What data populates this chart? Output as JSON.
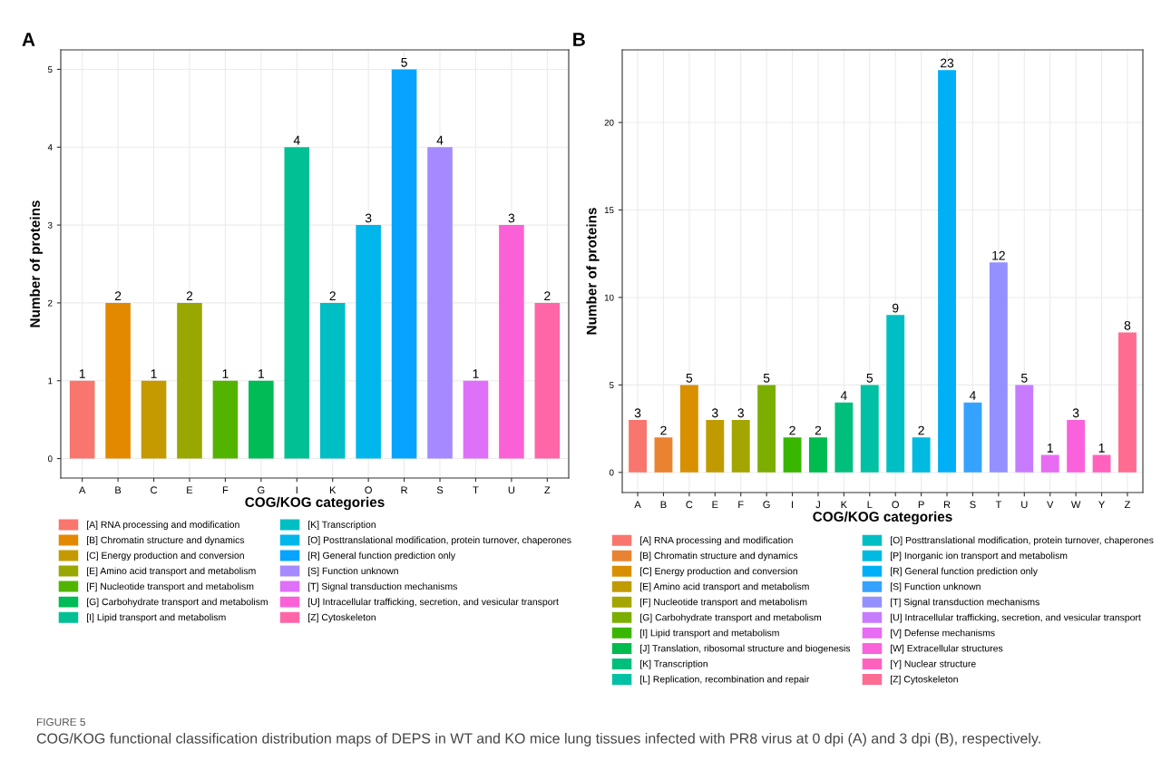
{
  "chart_data": [
    {
      "type": "bar",
      "title": "A",
      "xlabel": "COG/KOG categories",
      "ylabel": "Number of proteins",
      "categories": [
        "A",
        "B",
        "C",
        "E",
        "F",
        "G",
        "I",
        "K",
        "O",
        "R",
        "S",
        "T",
        "U",
        "Z"
      ],
      "series": [
        {
          "name": "[A] RNA processing and modification",
          "color": "#f8766d",
          "values": [
            1,
            null,
            null,
            null,
            null,
            null,
            null,
            null,
            null,
            null,
            null,
            null,
            null,
            null
          ]
        },
        {
          "name": "[B] Chromatin structure and dynamics",
          "color": "#e38900",
          "values": [
            null,
            2,
            null,
            null,
            null,
            null,
            null,
            null,
            null,
            null,
            null,
            null,
            null,
            null
          ]
        },
        {
          "name": "[C] Energy production and conversion",
          "color": "#c49a00",
          "values": [
            null,
            null,
            1,
            null,
            null,
            null,
            null,
            null,
            null,
            null,
            null,
            null,
            null,
            null
          ]
        },
        {
          "name": "[E] Amino acid transport and metabolism",
          "color": "#99a800",
          "values": [
            null,
            null,
            null,
            2,
            null,
            null,
            null,
            null,
            null,
            null,
            null,
            null,
            null,
            null
          ]
        },
        {
          "name": "[F] Nucleotide transport and metabolism",
          "color": "#53b400",
          "values": [
            null,
            null,
            null,
            null,
            1,
            null,
            null,
            null,
            null,
            null,
            null,
            null,
            null,
            null
          ]
        },
        {
          "name": "[G] Carbohydrate transport and metabolism",
          "color": "#00bc56",
          "values": [
            null,
            null,
            null,
            null,
            null,
            1,
            null,
            null,
            null,
            null,
            null,
            null,
            null,
            null
          ]
        },
        {
          "name": "[I] Lipid transport and metabolism",
          "color": "#00c094",
          "values": [
            null,
            null,
            null,
            null,
            null,
            null,
            4,
            null,
            null,
            null,
            null,
            null,
            null,
            null
          ]
        },
        {
          "name": "[K] Transcription",
          "color": "#00bfc4",
          "values": [
            null,
            null,
            null,
            null,
            null,
            null,
            null,
            2,
            null,
            null,
            null,
            null,
            null,
            null
          ]
        },
        {
          "name": "[O] Posttranslational modification, protein turnover, chaperones",
          "color": "#00b6eb",
          "values": [
            null,
            null,
            null,
            null,
            null,
            null,
            null,
            null,
            3,
            null,
            null,
            null,
            null,
            null
          ]
        },
        {
          "name": "[R] General function prediction only",
          "color": "#06a4ff",
          "values": [
            null,
            null,
            null,
            null,
            null,
            null,
            null,
            null,
            null,
            5,
            null,
            null,
            null,
            null
          ]
        },
        {
          "name": "[S] Function unknown",
          "color": "#a58aff",
          "values": [
            null,
            null,
            null,
            null,
            null,
            null,
            null,
            null,
            null,
            null,
            4,
            null,
            null,
            null
          ]
        },
        {
          "name": "[T] Signal transduction mechanisms",
          "color": "#df70f8",
          "values": [
            null,
            null,
            null,
            null,
            null,
            null,
            null,
            null,
            null,
            null,
            null,
            1,
            null,
            null
          ]
        },
        {
          "name": "[U] Intracellular trafficking, secretion, and vesicular transport",
          "color": "#fb61d7",
          "values": [
            null,
            null,
            null,
            null,
            null,
            null,
            null,
            null,
            null,
            null,
            null,
            null,
            3,
            null
          ]
        },
        {
          "name": "[Z] Cytoskeleton",
          "color": "#ff66a8",
          "values": [
            null,
            null,
            null,
            null,
            null,
            null,
            null,
            null,
            null,
            null,
            null,
            null,
            null,
            2
          ]
        }
      ],
      "ylim": [
        -0.25,
        5.25
      ],
      "yticks": [
        0,
        1,
        2,
        3,
        4,
        5
      ],
      "grid": true,
      "legend": "bottom",
      "data_labels": true
    },
    {
      "type": "bar",
      "title": "B",
      "xlabel": "COG/KOG categories",
      "ylabel": "Number of proteins",
      "categories": [
        "A",
        "B",
        "C",
        "E",
        "F",
        "G",
        "I",
        "J",
        "K",
        "L",
        "O",
        "P",
        "R",
        "S",
        "T",
        "U",
        "V",
        "W",
        "Y",
        "Z"
      ],
      "series": [
        {
          "name": "[A] RNA processing and modification",
          "color": "#f8766d",
          "values": [
            3,
            null,
            null,
            null,
            null,
            null,
            null,
            null,
            null,
            null,
            null,
            null,
            null,
            null,
            null,
            null,
            null,
            null,
            null,
            null
          ]
        },
        {
          "name": "[B] Chromatin structure and dynamics",
          "color": "#ea8331",
          "values": [
            null,
            2,
            null,
            null,
            null,
            null,
            null,
            null,
            null,
            null,
            null,
            null,
            null,
            null,
            null,
            null,
            null,
            null,
            null,
            null
          ]
        },
        {
          "name": "[C] Energy production and conversion",
          "color": "#d89000",
          "values": [
            null,
            null,
            5,
            null,
            null,
            null,
            null,
            null,
            null,
            null,
            null,
            null,
            null,
            null,
            null,
            null,
            null,
            null,
            null,
            null
          ]
        },
        {
          "name": "[E] Amino acid transport and metabolism",
          "color": "#c09b00",
          "values": [
            null,
            null,
            null,
            3,
            null,
            null,
            null,
            null,
            null,
            null,
            null,
            null,
            null,
            null,
            null,
            null,
            null,
            null,
            null,
            null
          ]
        },
        {
          "name": "[F] Nucleotide transport and metabolism",
          "color": "#a3a500",
          "values": [
            null,
            null,
            null,
            null,
            3,
            null,
            null,
            null,
            null,
            null,
            null,
            null,
            null,
            null,
            null,
            null,
            null,
            null,
            null,
            null
          ]
        },
        {
          "name": "[G] Carbohydrate transport and metabolism",
          "color": "#7cae00",
          "values": [
            null,
            null,
            null,
            null,
            null,
            5,
            null,
            null,
            null,
            null,
            null,
            null,
            null,
            null,
            null,
            null,
            null,
            null,
            null,
            null
          ]
        },
        {
          "name": "[I] Lipid transport and metabolism",
          "color": "#39b600",
          "values": [
            null,
            null,
            null,
            null,
            null,
            null,
            2,
            null,
            null,
            null,
            null,
            null,
            null,
            null,
            null,
            null,
            null,
            null,
            null,
            null
          ]
        },
        {
          "name": "[J] Translation, ribosomal structure and biogenesis",
          "color": "#00bb4e",
          "values": [
            null,
            null,
            null,
            null,
            null,
            null,
            null,
            2,
            null,
            null,
            null,
            null,
            null,
            null,
            null,
            null,
            null,
            null,
            null,
            null
          ]
        },
        {
          "name": "[K] Transcription",
          "color": "#00bf7d",
          "values": [
            null,
            null,
            null,
            null,
            null,
            null,
            null,
            null,
            4,
            null,
            null,
            null,
            null,
            null,
            null,
            null,
            null,
            null,
            null,
            null
          ]
        },
        {
          "name": "[L] Replication, recombination and repair",
          "color": "#00c1a3",
          "values": [
            null,
            null,
            null,
            null,
            null,
            null,
            null,
            null,
            null,
            5,
            null,
            null,
            null,
            null,
            null,
            null,
            null,
            null,
            null,
            null
          ]
        },
        {
          "name": "[O] Posttranslational modification, protein turnover, chaperones",
          "color": "#00bfc4",
          "values": [
            null,
            null,
            null,
            null,
            null,
            null,
            null,
            null,
            null,
            null,
            9,
            null,
            null,
            null,
            null,
            null,
            null,
            null,
            null,
            null
          ]
        },
        {
          "name": "[P] Inorganic ion transport and metabolism",
          "color": "#00bae0",
          "values": [
            null,
            null,
            null,
            null,
            null,
            null,
            null,
            null,
            null,
            null,
            null,
            2,
            null,
            null,
            null,
            null,
            null,
            null,
            null,
            null
          ]
        },
        {
          "name": "[R] General function prediction only",
          "color": "#00b0f6",
          "values": [
            null,
            null,
            null,
            null,
            null,
            null,
            null,
            null,
            null,
            null,
            null,
            null,
            23,
            null,
            null,
            null,
            null,
            null,
            null,
            null
          ]
        },
        {
          "name": "[S] Function unknown",
          "color": "#35a2ff",
          "values": [
            null,
            null,
            null,
            null,
            null,
            null,
            null,
            null,
            null,
            null,
            null,
            null,
            null,
            4,
            null,
            null,
            null,
            null,
            null,
            null
          ]
        },
        {
          "name": "[T] Signal transduction mechanisms",
          "color": "#9590ff",
          "values": [
            null,
            null,
            null,
            null,
            null,
            null,
            null,
            null,
            null,
            null,
            null,
            null,
            null,
            null,
            12,
            null,
            null,
            null,
            null,
            null
          ]
        },
        {
          "name": "[U] Intracellular trafficking, secretion, and vesicular transport",
          "color": "#c77cff",
          "values": [
            null,
            null,
            null,
            null,
            null,
            null,
            null,
            null,
            null,
            null,
            null,
            null,
            null,
            null,
            null,
            5,
            null,
            null,
            null,
            null
          ]
        },
        {
          "name": "[V] Defense mechanisms",
          "color": "#e76bf3",
          "values": [
            null,
            null,
            null,
            null,
            null,
            null,
            null,
            null,
            null,
            null,
            null,
            null,
            null,
            null,
            null,
            null,
            1,
            null,
            null,
            null
          ]
        },
        {
          "name": "[W] Extracellular structures",
          "color": "#fa62db",
          "values": [
            null,
            null,
            null,
            null,
            null,
            null,
            null,
            null,
            null,
            null,
            null,
            null,
            null,
            null,
            null,
            null,
            null,
            3,
            null,
            null
          ]
        },
        {
          "name": "[Y] Nuclear structure",
          "color": "#ff62bc",
          "values": [
            null,
            null,
            null,
            null,
            null,
            null,
            null,
            null,
            null,
            null,
            null,
            null,
            null,
            null,
            null,
            null,
            null,
            null,
            1,
            null
          ]
        },
        {
          "name": "[Z] Cytoskeleton",
          "color": "#ff6c91",
          "values": [
            null,
            null,
            null,
            null,
            null,
            null,
            null,
            null,
            null,
            null,
            null,
            null,
            null,
            null,
            null,
            null,
            null,
            null,
            null,
            8
          ]
        }
      ],
      "ylim": [
        -1.15,
        24.15
      ],
      "yticks": [
        0,
        5,
        10,
        15,
        20
      ],
      "grid": true,
      "legend": "bottom",
      "data_labels": true,
      "annotations": [
        "FIGURE 5",
        "COG/KOG functional classification distribution maps of DEPS in WT and KO mice lung tissues infected with PR8 virus at 0 dpi (A) and 3 dpi (B), respectively."
      ]
    }
  ]
}
